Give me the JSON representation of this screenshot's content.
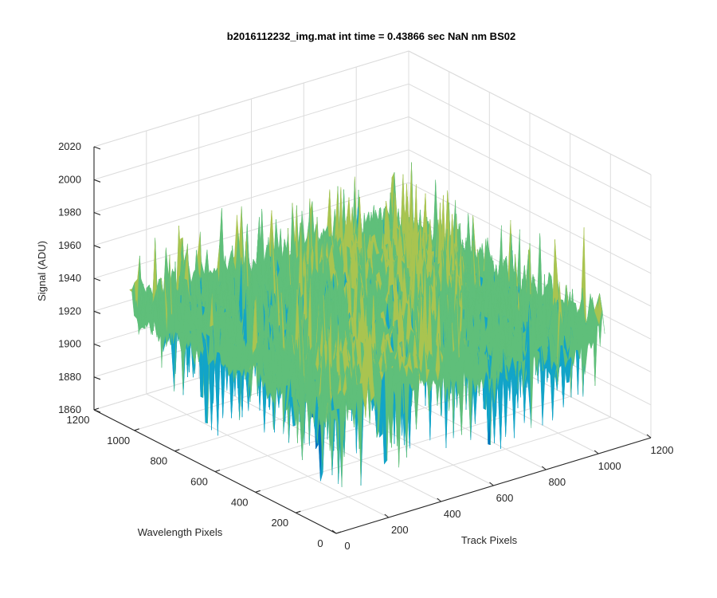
{
  "chart_data": {
    "type": "surface",
    "title": "b2016112232_img.mat int time = 0.43866 sec  NaN nm BS02",
    "xlabel": "Track Pixels",
    "ylabel": "Wavelength Pixels",
    "zlabel": "Signal (ADU)",
    "xlim": [
      0,
      1200
    ],
    "ylim": [
      0,
      1200
    ],
    "zlim": [
      1860,
      2020
    ],
    "xticks": [
      0,
      200,
      400,
      600,
      800,
      1000,
      1200
    ],
    "yticks": [
      0,
      200,
      400,
      600,
      800,
      1000,
      1200
    ],
    "zticks": [
      1860,
      1880,
      1900,
      1920,
      1940,
      1960,
      1980,
      2000,
      2020
    ],
    "data_extent": {
      "x": [
        0,
        1024
      ],
      "y": [
        0,
        1024
      ]
    },
    "grid": true,
    "colormap": "parula",
    "surface_summary": {
      "description_of_values": "noisy dark-frame surface",
      "mean_signal": 1935,
      "min_signal": 1880,
      "max_signal": 1990
    },
    "colors": {
      "low": "#0072bd",
      "mid_low": "#12a4c8",
      "mid": "#5fbf7a",
      "mid_high": "#a9c450",
      "high": "#e0b83c"
    }
  }
}
